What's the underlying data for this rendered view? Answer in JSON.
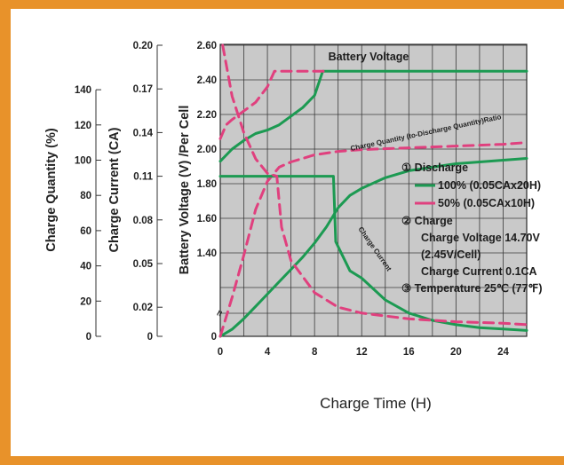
{
  "chart_data": {
    "type": "line",
    "x": {
      "label": "Charge Time (H)",
      "range": [
        0,
        26
      ],
      "ticks": [
        "0",
        "4",
        "8",
        "12",
        "16",
        "20",
        "24"
      ]
    },
    "axes": {
      "quantity": {
        "label": "Charge Quantity (%)",
        "ticks": [
          "0",
          "20",
          "40",
          "60",
          "80",
          "100",
          "120",
          "140"
        ]
      },
      "current": {
        "label": "Charge Current (CA)",
        "ticks": [
          "0",
          "0.02",
          "0.05",
          "0.08",
          "0.11",
          "0.14",
          "0.17",
          "0.20"
        ]
      },
      "voltage": {
        "label": "Battery Voltage (V) /Per Cell",
        "ticks": [
          "0",
          "1.40",
          "1.60",
          "1.80",
          "2.00",
          "2.20",
          "2.40",
          "2.60"
        ]
      }
    },
    "series": [
      {
        "name": "Battery Voltage",
        "legend": "100% (0.05CAx20H)",
        "axis": "voltage",
        "color": "#1c9a52",
        "style": "solid",
        "points": [
          [
            0,
            1.93
          ],
          [
            1,
            2.0
          ],
          [
            2,
            2.05
          ],
          [
            3,
            2.09
          ],
          [
            4,
            2.11
          ],
          [
            5,
            2.14
          ],
          [
            6,
            2.19
          ],
          [
            7,
            2.24
          ],
          [
            8,
            2.31
          ],
          [
            8.7,
            2.45
          ],
          [
            9,
            2.45
          ],
          [
            26,
            2.45
          ]
        ]
      },
      {
        "name": "Battery Voltage",
        "legend": "50% (0.05CAx10H)",
        "axis": "voltage",
        "color": "#e0407e",
        "style": "dashed",
        "points": [
          [
            0,
            2.06
          ],
          [
            0.5,
            2.14
          ],
          [
            1,
            2.17
          ],
          [
            2,
            2.22
          ],
          [
            3,
            2.27
          ],
          [
            4,
            2.36
          ],
          [
            4.6,
            2.45
          ],
          [
            9,
            2.45
          ]
        ]
      },
      {
        "name": "Charge Quantity (to-Discharge Quantity) Ratio",
        "legend": "100% (0.05CAx20H)",
        "axis": "quantity",
        "color": "#1c9a52",
        "style": "solid",
        "points": [
          [
            0,
            0
          ],
          [
            1,
            4
          ],
          [
            2,
            10
          ],
          [
            3,
            17
          ],
          [
            4,
            24
          ],
          [
            5,
            31
          ],
          [
            6,
            38
          ],
          [
            7,
            45
          ],
          [
            8,
            53
          ],
          [
            9,
            62
          ],
          [
            10,
            73
          ],
          [
            11,
            80
          ],
          [
            12,
            84
          ],
          [
            14,
            90
          ],
          [
            16,
            94
          ],
          [
            18,
            96
          ],
          [
            20,
            98
          ],
          [
            22,
            99
          ],
          [
            24,
            100
          ],
          [
            26,
            101
          ]
        ]
      },
      {
        "name": "Charge Quantity (to-Discharge Quantity) Ratio",
        "legend": "50% (0.05CAx10H)",
        "axis": "quantity",
        "color": "#e0407e",
        "style": "dashed",
        "points": [
          [
            0,
            0
          ],
          [
            1,
            22
          ],
          [
            2,
            46
          ],
          [
            3,
            72
          ],
          [
            4,
            88
          ],
          [
            5,
            96
          ],
          [
            6,
            99
          ],
          [
            8,
            103
          ],
          [
            10,
            105
          ],
          [
            12,
            106
          ],
          [
            16,
            107
          ],
          [
            20,
            108
          ],
          [
            24,
            109
          ],
          [
            26,
            110
          ]
        ]
      },
      {
        "name": "Charge Current",
        "legend": "100% (0.05CAx20H)",
        "axis": "current",
        "color": "#1c9a52",
        "style": "solid",
        "points": [
          [
            0,
            0.11
          ],
          [
            9.6,
            0.11
          ],
          [
            9.8,
            0.065
          ],
          [
            11,
            0.045
          ],
          [
            12,
            0.04
          ],
          [
            14,
            0.025
          ],
          [
            16,
            0.016
          ],
          [
            18,
            0.011
          ],
          [
            20,
            0.008
          ],
          [
            22,
            0.006
          ],
          [
            24,
            0.005
          ],
          [
            26,
            0.004
          ]
        ]
      },
      {
        "name": "Charge Current",
        "legend": "50% (0.05CAx10H)",
        "axis": "current",
        "color": "#e0407e",
        "style": "dashed",
        "points": [
          [
            0.2,
            0.2
          ],
          [
            1,
            0.165
          ],
          [
            2,
            0.14
          ],
          [
            3,
            0.122
          ],
          [
            4,
            0.112
          ],
          [
            4.8,
            0.11
          ],
          [
            5.2,
            0.075
          ],
          [
            6,
            0.052
          ],
          [
            8,
            0.03
          ],
          [
            10,
            0.02
          ],
          [
            12,
            0.016
          ],
          [
            16,
            0.012
          ],
          [
            20,
            0.01
          ],
          [
            24,
            0.009
          ],
          [
            26,
            0.008
          ]
        ]
      }
    ],
    "series_labels": {
      "battery_voltage": "Battery Voltage",
      "charge_quantity": "Charge Quantity (to-Discharge Quantity)Ratio",
      "charge_current": "Charge Current"
    },
    "annotations": {
      "discharge_title": "① Discharge",
      "legend_100": "100% (0.05CAx20H)",
      "legend_50": "50% (0.05CAx10H)",
      "charge_title": "② Charge",
      "charge_voltage": "Charge Voltage 14.70V",
      "per_cell": "(2.45V/Cell)",
      "charge_current": "Charge Current 0.1CA",
      "temperature": "③ Temperature 25℃ (77℉)"
    },
    "grid": true,
    "colors": {
      "green": "#1c9a52",
      "pink": "#e0407e",
      "plot_bg": "#c9c9c9",
      "grid": "#3a3a3a",
      "frame": "#e8922a"
    }
  }
}
